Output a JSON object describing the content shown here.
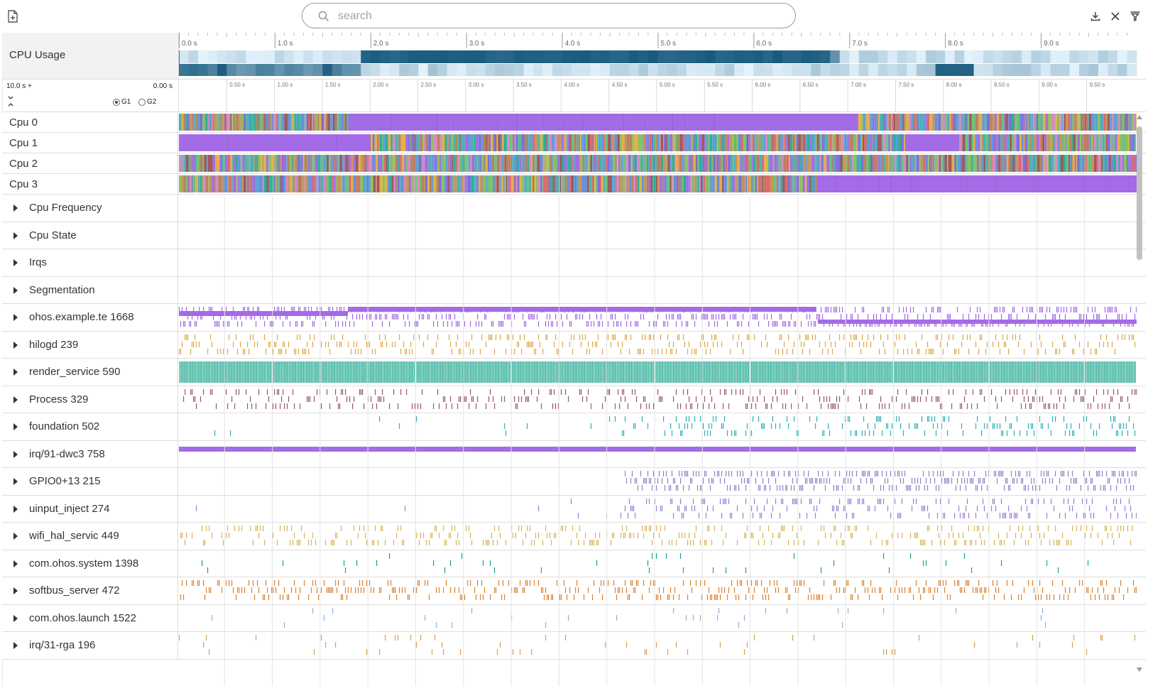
{
  "search": {
    "placeholder": "search"
  },
  "header": {
    "cpu_usage_label": "CPU Usage"
  },
  "time_control": {
    "total": "10.0 s +",
    "offset": "0.00 s",
    "radio_options": [
      "G1",
      "G2"
    ],
    "selected": "G1"
  },
  "ruler": {
    "major_ticks": [
      "0.0 s",
      "1.0 s",
      "2.0 s",
      "3.0 s",
      "4.0 s",
      "5.0 s",
      "6.0 s",
      "7.0 s",
      "8.0 s",
      "9.0 s"
    ],
    "minor_ticks": [
      "0.50 s",
      "1.00 s",
      "1.50 s",
      "2.00 s",
      "2.50 s",
      "3.00 s",
      "3.50 s",
      "4.00 s",
      "4.50 s",
      "5.00 s",
      "5.50 s",
      "6.00 s",
      "6.50 s",
      "7.00 s",
      "7.50 s",
      "8.00 s",
      "8.50 s",
      "9.00 s",
      "9.50 s"
    ]
  },
  "cpu_tracks": [
    "Cpu 0",
    "Cpu 1",
    "Cpu 2",
    "Cpu 3"
  ],
  "group_tracks": [
    "Cpu Frequency",
    "Cpu State",
    "Irqs",
    "Segmentation"
  ],
  "process_tracks": [
    {
      "label": "ohos.example.te 1668",
      "color": "#a46be6"
    },
    {
      "label": "hilogd 239",
      "color": "#dba94a"
    },
    {
      "label": "render_service 590",
      "color": "#2eae98"
    },
    {
      "label": "Process 329",
      "color": "#9a5a5e"
    },
    {
      "label": "foundation 502",
      "color": "#2fb0b8"
    },
    {
      "label": "irq/91-dwc3 758",
      "color": "#a46be6"
    },
    {
      "label": "GPIO0+13 215",
      "color": "#9082c8"
    },
    {
      "label": "uinput_inject 274",
      "color": "#9a7fd4"
    },
    {
      "label": "wifi_hal_servic 449",
      "color": "#d7b45a"
    },
    {
      "label": "com.ohos.system 1398",
      "color": "#1a9e8f"
    },
    {
      "label": "softbus_server 472",
      "color": "#d9832e"
    },
    {
      "label": "com.ohos.launch 1522",
      "color": "#8fb0d8"
    },
    {
      "label": "irq/31-rga 196",
      "color": "#d7a054"
    }
  ],
  "colors": {
    "cpu_purple": "#a46be6",
    "usage_dark": "#0d5378",
    "usage_light": "#e3f2fb"
  }
}
